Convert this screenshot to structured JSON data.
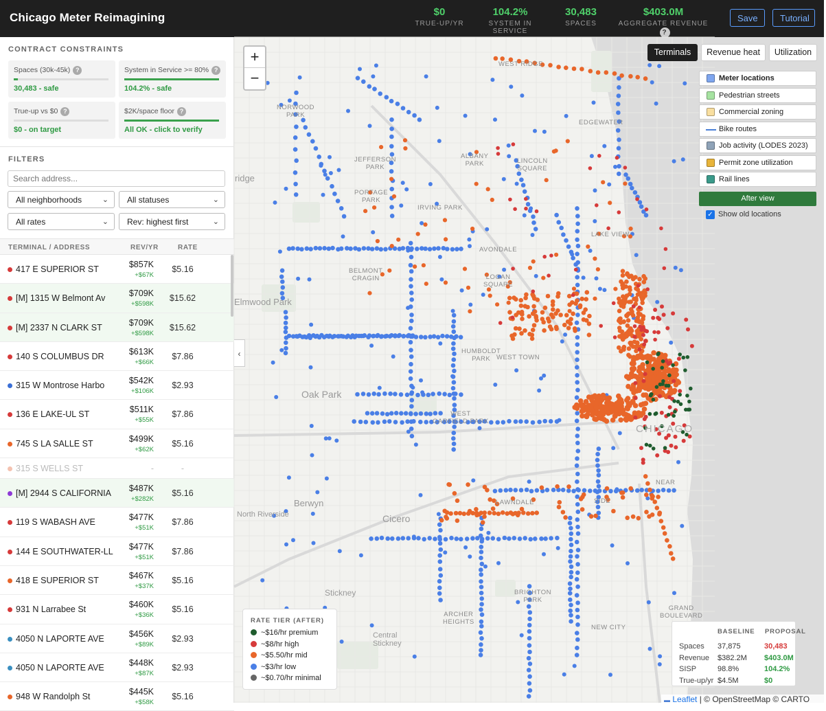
{
  "header": {
    "title": "Chicago Meter Reimagining",
    "stats": [
      {
        "value": "$0",
        "label": "TRUE-UP/YR"
      },
      {
        "value": "104.2%",
        "label": "SYSTEM IN SERVICE"
      },
      {
        "value": "30,483",
        "label": "SPACES"
      },
      {
        "value": "$403.0M",
        "label": "AGGREGATE REVENUE"
      }
    ],
    "help_glyph": "?",
    "save_label": "Save",
    "tutorial_label": "Tutorial"
  },
  "constraints": {
    "heading": "CONTRACT CONSTRAINTS",
    "help_glyph": "?",
    "cards": [
      {
        "title": "Spaces (30k-45k)",
        "status": "30,483 - safe",
        "progress": 0.04
      },
      {
        "title": "System in Service >= 80%",
        "status": "104.2% - safe",
        "progress": 1.0
      },
      {
        "title": "True-up vs $0",
        "status": "$0 - on target",
        "progress": 0
      },
      {
        "title": "$2K/space floor",
        "status": "All OK - click to verify",
        "progress": 1.0
      }
    ]
  },
  "filters": {
    "heading": "FILTERS",
    "search_placeholder": "Search address...",
    "neighborhood": "All neighborhoods",
    "status": "All statuses",
    "rate": "All rates",
    "sort": "Rev: highest first"
  },
  "table": {
    "columns": [
      "TERMINAL / ADDRESS",
      "REV/YR",
      "RATE"
    ],
    "rows": [
      {
        "address": "417 E SUPERIOR ST",
        "rev": "$857K",
        "delta": "+$67K",
        "rate": "$5.16",
        "dot": "#d63a3a",
        "modified": false,
        "dim": false
      },
      {
        "address": "[M] 1315 W Belmont Av",
        "rev": "$709K",
        "delta": "+$598K",
        "rate": "$15.62",
        "dot": "#d63a3a",
        "modified": true,
        "dim": false
      },
      {
        "address": "[M] 2337 N CLARK ST",
        "rev": "$709K",
        "delta": "+$598K",
        "rate": "$15.62",
        "dot": "#d63a3a",
        "modified": true,
        "dim": false
      },
      {
        "address": "140 S COLUMBUS DR",
        "rev": "$613K",
        "delta": "+$66K",
        "rate": "$7.86",
        "dot": "#d63a3a",
        "modified": false,
        "dim": false
      },
      {
        "address": "315 W Montrose Harbo",
        "rev": "$542K",
        "delta": "+$106K",
        "rate": "$2.93",
        "dot": "#3a6fd6",
        "modified": false,
        "dim": false
      },
      {
        "address": "136 E LAKE-UL ST",
        "rev": "$511K",
        "delta": "+$55K",
        "rate": "$7.86",
        "dot": "#d63a3a",
        "modified": false,
        "dim": false
      },
      {
        "address": "745 S LA SALLE ST",
        "rev": "$499K",
        "delta": "+$62K",
        "rate": "$5.16",
        "dot": "#e8662a",
        "modified": false,
        "dim": false
      },
      {
        "address": "315 S WELLS ST",
        "rev": "-",
        "delta": "",
        "rate": "-",
        "dot": "#f4c2b0",
        "modified": false,
        "dim": true
      },
      {
        "address": "[M] 2944 S CALIFORNIA",
        "rev": "$487K",
        "delta": "+$282K",
        "rate": "$5.16",
        "dot": "#8e3ad6",
        "modified": true,
        "dim": false
      },
      {
        "address": "119 S WABASH AVE",
        "rev": "$477K",
        "delta": "+$51K",
        "rate": "$7.86",
        "dot": "#d63a3a",
        "modified": false,
        "dim": false
      },
      {
        "address": "144 E SOUTHWATER-LL",
        "rev": "$477K",
        "delta": "+$51K",
        "rate": "$7.86",
        "dot": "#d63a3a",
        "modified": false,
        "dim": false
      },
      {
        "address": "418 E SUPERIOR ST",
        "rev": "$467K",
        "delta": "+$37K",
        "rate": "$5.16",
        "dot": "#e8662a",
        "modified": false,
        "dim": false
      },
      {
        "address": "931 N Larrabee St",
        "rev": "$460K",
        "delta": "+$36K",
        "rate": "$5.16",
        "dot": "#d63a3a",
        "modified": false,
        "dim": false
      },
      {
        "address": "4050 N LAPORTE AVE",
        "rev": "$456K",
        "delta": "+$89K",
        "rate": "$2.93",
        "dot": "#3a8fc0",
        "modified": false,
        "dim": false
      },
      {
        "address": "4050 N LAPORTE AVE",
        "rev": "$448K",
        "delta": "+$87K",
        "rate": "$2.93",
        "dot": "#3a8fc0",
        "modified": false,
        "dim": false
      },
      {
        "address": "948 W Randolph St",
        "rev": "$445K",
        "delta": "+$58K",
        "rate": "$5.16",
        "dot": "#e8662a",
        "modified": false,
        "dim": false
      }
    ]
  },
  "map": {
    "zoom_in": "+",
    "zoom_out": "−",
    "collapse_glyph": "‹",
    "tabs": [
      "Terminals",
      "Revenue heat",
      "Utilization"
    ],
    "active_tab": "Terminals",
    "layers": [
      {
        "label": "Meter locations",
        "color": "#7fa6ef",
        "bold": true
      },
      {
        "label": "Pedestrian streets",
        "color": "#a6e3a1",
        "bold": false
      },
      {
        "label": "Commercial zoning",
        "color": "#f9dfa0",
        "bold": false
      },
      {
        "label": "Bike routes",
        "color": "#4a7fd6",
        "bold": false,
        "line": true
      },
      {
        "label": "Job activity (LODES 2023)",
        "color": "#8fa3b8",
        "bold": false
      },
      {
        "label": "Permit zone utilization",
        "color": "#e8b43a",
        "bold": false
      },
      {
        "label": "Rail lines",
        "color": "#3a9a8a",
        "bold": false
      }
    ],
    "after_view_label": "After view",
    "show_old_label": "Show old locations",
    "check_glyph": "✓",
    "places": [
      "WEST RIDGE",
      "NORWOOD\nPARK",
      "EDGEWATER",
      "JEFFERSON\nPARK",
      "ALBANY\nPARK",
      "LINCOLN\nSQUARE",
      "PORTAGE\nPARK",
      "IRVING PARK",
      "LAKE VIEW",
      "AVONDALE",
      "BELMONT\nCRAGIN",
      "LOGAN\nSQUARE",
      "HUMBOLDT\nPARK",
      "WEST TOWN",
      "WEST\nGARFIELD PARK",
      "NEAR",
      "LAWNDALE",
      "BRIGHTON\nPARK",
      "ARCHER\nHEIGHTS",
      "NEW CITY",
      "GRAND\nBOULEVARD",
      "SIDE"
    ],
    "cities": [
      "ridge",
      "Elmwood Park",
      "Oak Park",
      "Berwyn",
      "Cicero",
      "North Riverside",
      "Stickney",
      "Central\nStickney",
      "CHICAGO"
    ],
    "legend": {
      "heading": "RATE TIER (AFTER)",
      "items": [
        {
          "label": "~$16/hr premium",
          "color": "#1f5c2e"
        },
        {
          "label": "~$8/hr high",
          "color": "#d63a3a"
        },
        {
          "label": "~$5.50/hr mid",
          "color": "#e8662a"
        },
        {
          "label": "~$3/hr low",
          "color": "#4a7fe6"
        },
        {
          "label": "~$0.70/hr minimal",
          "color": "#666666"
        }
      ]
    },
    "comparison": {
      "baseline_label": "BASELINE",
      "proposal_label": "PROPOSAL",
      "rows": [
        {
          "key": "Spaces",
          "baseline": "37,875",
          "proposal": "30,483",
          "color": "#d63a3a"
        },
        {
          "key": "Revenue",
          "baseline": "$382.2M",
          "proposal": "$403.0M",
          "color": "#2f9a43"
        },
        {
          "key": "SISP",
          "baseline": "98.8%",
          "proposal": "104.2%",
          "color": "#2f9a43"
        },
        {
          "key": "True-up/yr",
          "baseline": "$4.5M",
          "proposal": "$0",
          "color": "#2f9a43"
        }
      ]
    },
    "attribution_leaflet": "Leaflet",
    "attribution_rest": " | © OpenStreetMap © CARTO"
  }
}
